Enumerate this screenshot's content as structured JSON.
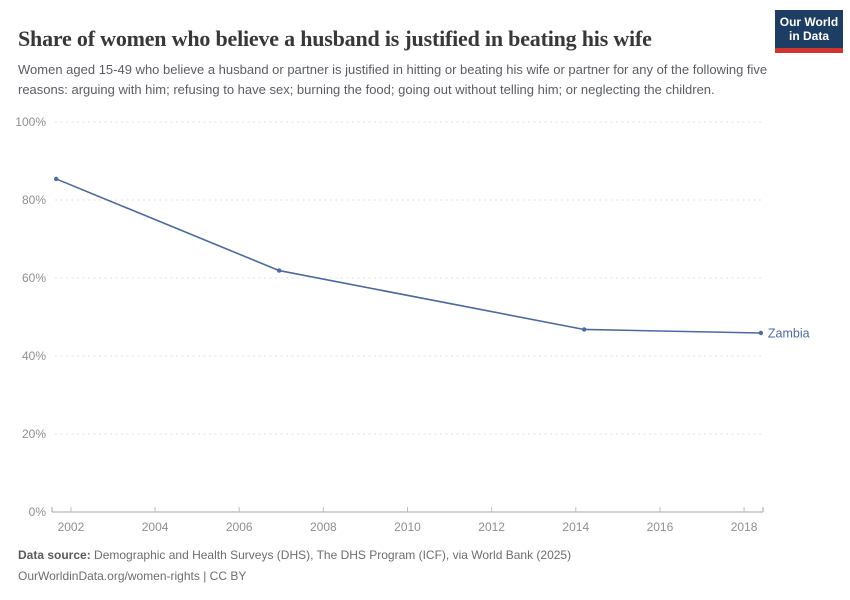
{
  "header": {
    "title": "Share of women who believe a husband is justified in beating his wife",
    "subtitle": "Women aged 15-49 who believe a husband or partner is justified in hitting or beating his wife or partner for any of the following five reasons: arguing with him; refusing to have sex; burning the food; going out without telling him; or neglecting the children.",
    "logo": {
      "line1": "Our World",
      "line2": "in Data",
      "bg_color": "#1d3d63",
      "accent_color": "#d0342c"
    }
  },
  "chart_data": {
    "type": "line",
    "title": "Share of women who believe a husband is justified in beating his wife",
    "xlabel": "",
    "ylabel": "",
    "x_ticks": [
      2002,
      2004,
      2006,
      2008,
      2010,
      2012,
      2014,
      2016,
      2018
    ],
    "y_ticks": [
      0,
      20,
      40,
      60,
      80,
      100
    ],
    "y_tick_suffix": "%",
    "x_range": [
      2001.55,
      2018.45
    ],
    "y_range": [
      0,
      100
    ],
    "grid": "horizontal-dashed",
    "legend_position": "end-of-line-label",
    "series": [
      {
        "name": "Zambia",
        "color": "#4c6aa0",
        "points": [
          {
            "year": 2002,
            "value": 85.4,
            "x": 2001.65
          },
          {
            "year": 2007,
            "value": 61.9,
            "x": 2006.95
          },
          {
            "year": 2014,
            "value": 46.8,
            "x": 2014.2
          },
          {
            "year": 2018,
            "value": 45.9,
            "x": 2018.4
          }
        ]
      }
    ],
    "colors": {
      "gridline": "#e2e2e2",
      "axis": "#a6a6a6",
      "tick_label": "#8f8f8f"
    }
  },
  "footer": {
    "data_source_label": "Data source:",
    "data_source_text": " Demographic and Health Surveys (DHS), The DHS Program (ICF), via World Bank (2025)",
    "url": "OurWorldinData.org/women-rights",
    "separator": " | ",
    "license": "CC BY"
  }
}
